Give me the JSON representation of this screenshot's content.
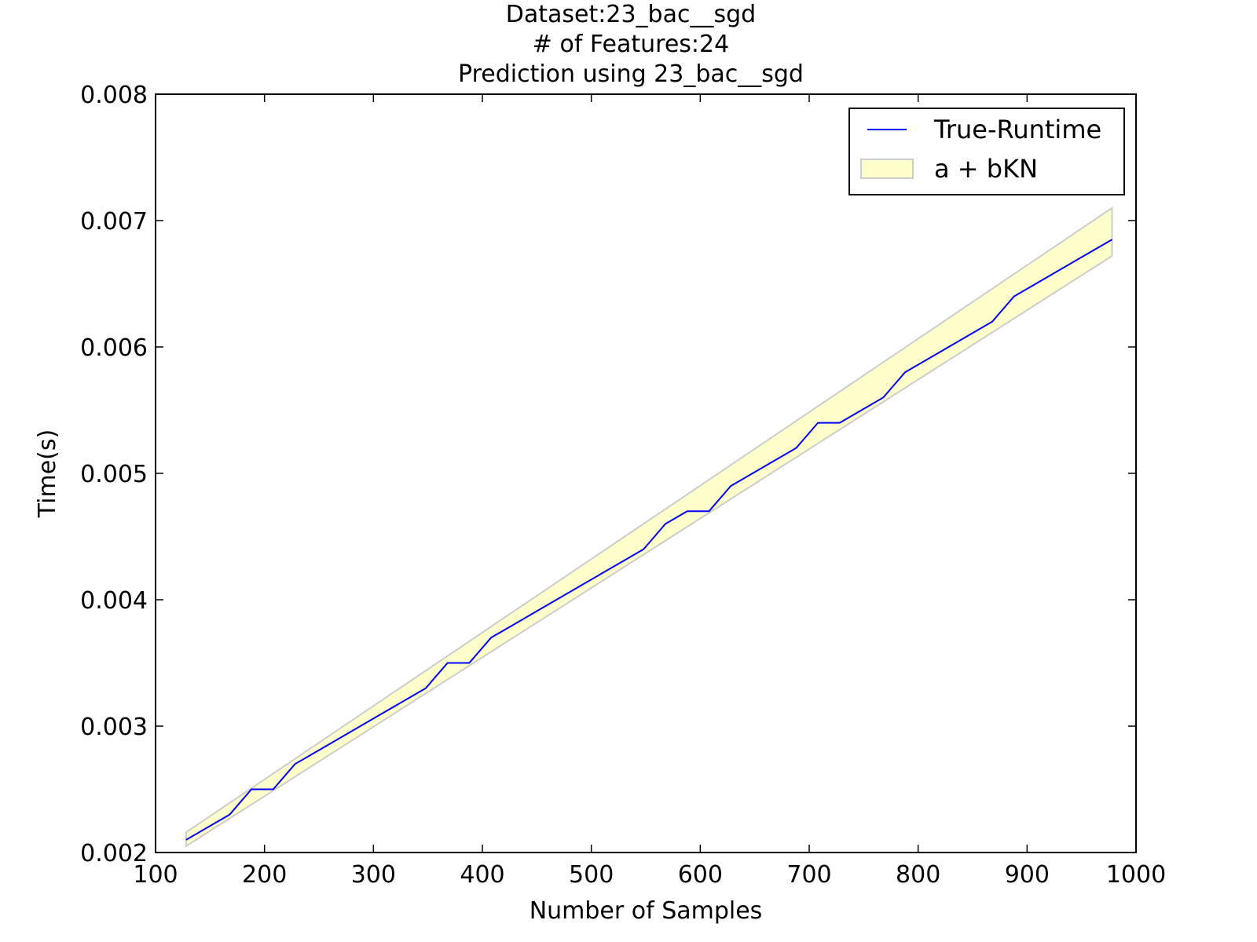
{
  "chart_data": {
    "type": "line",
    "title_lines": [
      "Dataset:23_bac__sgd",
      "# of Features:24",
      "Prediction using 23_bac__sgd"
    ],
    "xlabel": "Number of Samples",
    "ylabel": "Time(s)",
    "xlim": [
      100,
      1000
    ],
    "ylim": [
      0.002,
      0.008
    ],
    "xticks": [
      100,
      200,
      300,
      400,
      500,
      600,
      700,
      800,
      900,
      1000
    ],
    "xtick_labels": [
      "100",
      "200",
      "300",
      "400",
      "500",
      "600",
      "700",
      "800",
      "900",
      "1000"
    ],
    "yticks": [
      0.002,
      0.003,
      0.004,
      0.005,
      0.006,
      0.007,
      0.008
    ],
    "ytick_labels": [
      "0.002",
      "0.003",
      "0.004",
      "0.005",
      "0.006",
      "0.007",
      "0.008"
    ],
    "grid": false,
    "legend_position": "top-right",
    "series": [
      {
        "name": "True-Runtime",
        "kind": "line",
        "color": "#0000ff",
        "x": [
          128,
          148,
          168,
          188,
          208,
          228,
          248,
          268,
          288,
          308,
          328,
          348,
          368,
          388,
          408,
          428,
          448,
          468,
          488,
          508,
          528,
          548,
          568,
          588,
          608,
          628,
          648,
          668,
          688,
          708,
          728,
          748,
          768,
          788,
          808,
          828,
          848,
          868,
          888,
          908,
          928,
          948,
          968,
          978
        ],
        "y": [
          0.0021,
          0.0022,
          0.0023,
          0.0025,
          0.0025,
          0.0027,
          0.0028,
          0.0029,
          0.003,
          0.0031,
          0.0032,
          0.0033,
          0.0035,
          0.0035,
          0.0037,
          0.0038,
          0.0039,
          0.004,
          0.0041,
          0.0042,
          0.0043,
          0.0044,
          0.0046,
          0.0047,
          0.0047,
          0.0049,
          0.005,
          0.0051,
          0.0052,
          0.0054,
          0.0054,
          0.0055,
          0.0056,
          0.0058,
          0.0059,
          0.006,
          0.0061,
          0.0062,
          0.0064,
          0.0065,
          0.0066,
          0.0067,
          0.0068,
          0.00685
        ]
      },
      {
        "name": "a + bKN",
        "kind": "band",
        "fill_color": "#ffffcc",
        "edge_color": "#cccccc",
        "x": [
          128,
          978
        ],
        "lower": [
          0.00205,
          0.00672
        ],
        "upper": [
          0.00216,
          0.0071
        ]
      }
    ]
  }
}
